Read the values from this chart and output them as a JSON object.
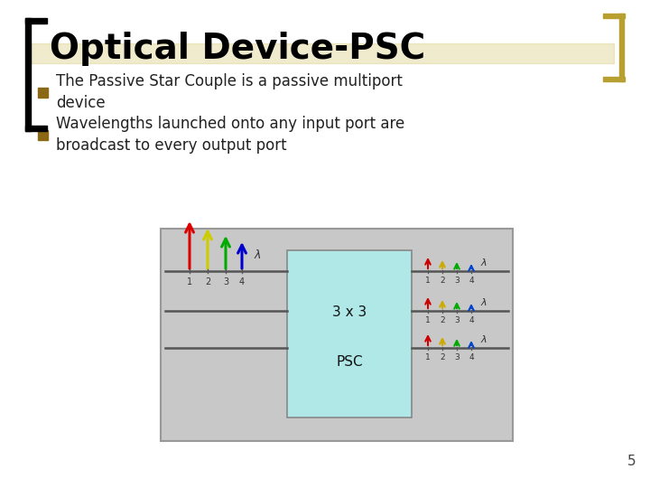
{
  "title": "Optical Device-PSC",
  "bullet1": "The Passive Star Couple is a passive multiport\ndevice",
  "bullet2": "Wavelengths launched onto any input port are\nbroadcast to every output port",
  "page_number": "5",
  "bg_color": "#ffffff",
  "title_color": "#000000",
  "bullet_square_color": "#8B6914",
  "diagram_bg": "#c8c8c8",
  "psc_box_color": "#b0e8e8",
  "psc_box_edge": "#888888",
  "arrow_colors": [
    "#dd0000",
    "#cccc00",
    "#00aa00",
    "#0000cc"
  ],
  "small_arrow_colors": [
    "#cc0000",
    "#ccaa00",
    "#00aa00",
    "#0044cc"
  ],
  "bracket_color": "#b8a030"
}
